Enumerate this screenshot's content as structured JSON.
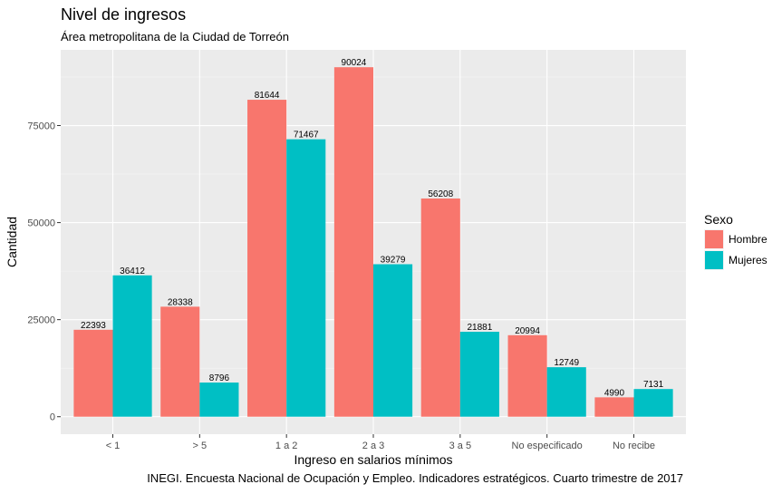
{
  "chart_data": {
    "type": "bar",
    "title": "Nivel de ingresos",
    "subtitle": "Área metropolitana de la Ciudad de Torreón",
    "xlabel": "Ingreso en salarios mínimos",
    "ylabel": "Cantidad",
    "caption": "INEGI. Encuesta Nacional de Ocupación y Empleo. Indicadores estratégicos. Cuarto trimestre de 2017",
    "categories": [
      "< 1",
      "> 5",
      "1 a 2",
      "2 a 3",
      "3 a 5",
      "No especificado",
      "No recibe"
    ],
    "series": [
      {
        "name": "Hombre",
        "color": "#F8766D",
        "values": [
          22393,
          28338,
          81644,
          90024,
          56208,
          20994,
          4990
        ]
      },
      {
        "name": "Mujeres",
        "color": "#00BFC4",
        "values": [
          36412,
          8796,
          71467,
          39279,
          21881,
          12749,
          7131
        ]
      }
    ],
    "ylim": [
      -4500,
      94500
    ],
    "yticks": [
      0,
      25000,
      50000,
      75000
    ],
    "ytick_labels": [
      "0",
      "25000",
      "50000",
      "75000"
    ],
    "legend": {
      "title": "Sexo",
      "position": "right"
    },
    "grid": true
  }
}
